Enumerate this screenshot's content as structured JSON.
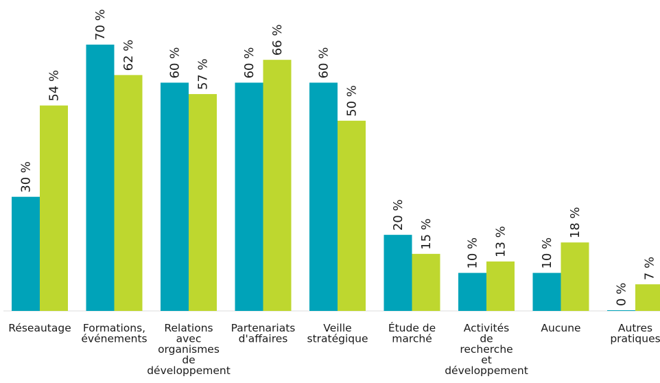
{
  "chart_data": {
    "type": "bar",
    "title": "",
    "xlabel": "",
    "ylabel": "",
    "ylim": [
      0,
      70
    ],
    "grid": false,
    "legend": "none",
    "categories": [
      [
        "Réseautage"
      ],
      [
        "Formations,",
        "événements"
      ],
      [
        "Relations",
        "avec",
        "organismes",
        "de",
        "développement"
      ],
      [
        "Partenariats",
        "d'affaires"
      ],
      [
        "Veille",
        "stratégique"
      ],
      [
        "Étude de",
        "marché"
      ],
      [
        "Activités",
        "de",
        "recherche",
        "et",
        "développement"
      ],
      [
        "Aucune"
      ],
      [
        "Autres",
        "pratiques"
      ]
    ],
    "series": [
      {
        "color": "#00a3b9",
        "values": [
          30,
          70,
          60,
          60,
          60,
          20,
          10,
          10,
          0
        ],
        "labels": [
          "30 %",
          "70 %",
          "60 %",
          "60 %",
          "60 %",
          "20 %",
          "10 %",
          "10 %",
          "0 %"
        ]
      },
      {
        "color": "#bed72f",
        "values": [
          54,
          62,
          57,
          66,
          50,
          15,
          13,
          18,
          7
        ],
        "labels": [
          "54 %",
          "62 %",
          "57 %",
          "66 %",
          "50 %",
          "15 %",
          "13 %",
          "18 %",
          "7 %"
        ]
      }
    ]
  }
}
